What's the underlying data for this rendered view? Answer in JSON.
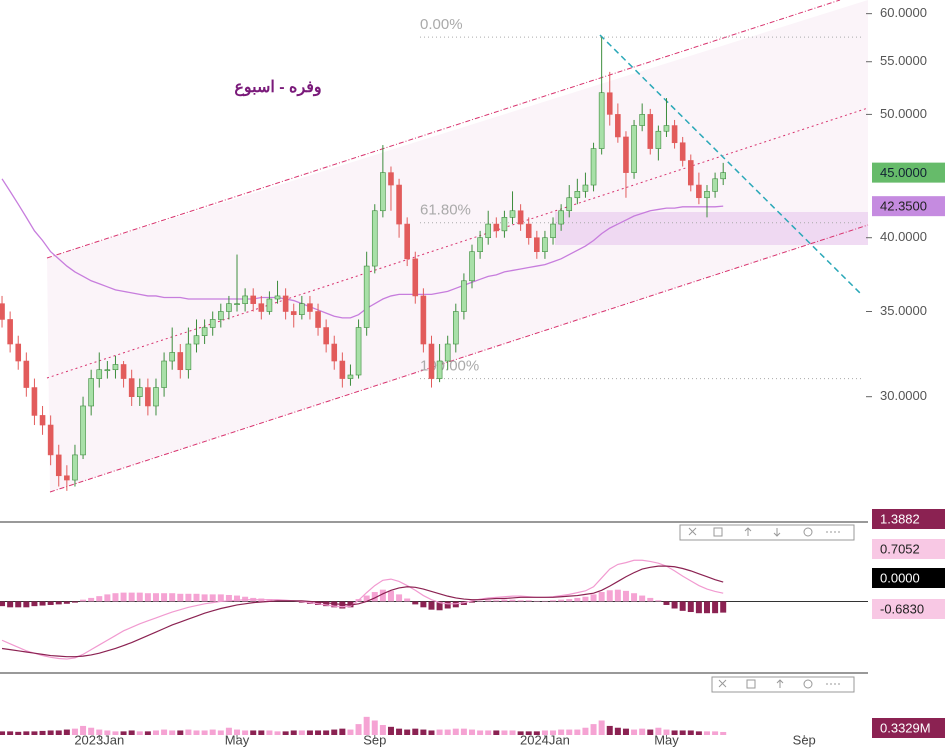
{
  "chart_data": [
    {
      "type": "candlestick",
      "title": "وفره - اسبوع",
      "log_y": true,
      "xlim": [
        -0.25,
        106.5
      ],
      "ylim": [
        24,
        61.5
      ],
      "xticks": [
        {
          "value": 12,
          "label": "2023Jan"
        },
        {
          "value": 29,
          "label": "May"
        },
        {
          "value": 46,
          "label": "Sep"
        },
        {
          "value": 67,
          "label": "2024Jan"
        },
        {
          "value": 82,
          "label": "May"
        },
        {
          "value": 99,
          "label": "Sep"
        }
      ],
      "yticks": [
        {
          "value": 60,
          "label": "60.0000"
        },
        {
          "value": 55,
          "label": "55.0000"
        },
        {
          "value": 50,
          "label": "50.0000"
        },
        {
          "value": 40,
          "label": "40.0000"
        },
        {
          "value": 35,
          "label": "35.0000"
        },
        {
          "value": 30,
          "label": "30.0000"
        }
      ],
      "up_color": "#a8e0a8",
      "up_edge": "#3c8c3c",
      "down_color": "#e25b5b",
      "open": [
        35.5,
        34.5,
        33,
        32,
        30.5,
        29,
        28.5,
        27,
        26,
        25.8,
        27,
        29.5,
        31,
        31.5,
        31.5,
        31.8,
        31,
        30,
        30.5,
        29.5,
        30.5,
        32,
        32.5,
        31.5,
        33,
        33.5,
        34,
        34.5,
        35,
        35.5,
        35.5,
        36,
        35.5,
        35,
        35.8,
        36,
        35,
        34.8,
        35.5,
        35,
        34,
        33,
        32,
        31,
        31.2,
        34,
        38,
        42,
        45,
        44,
        41,
        38.5,
        36,
        33,
        31,
        32,
        33,
        35,
        37,
        39,
        40,
        41,
        40.5,
        41.5,
        42,
        41,
        40,
        39,
        40,
        41,
        42,
        43,
        43.5,
        44,
        47,
        52,
        50,
        48,
        45,
        49,
        50,
        47,
        48.5,
        49,
        47.5,
        46,
        44,
        43,
        43.5,
        44.5
      ],
      "high": [
        36,
        35,
        33.5,
        32.5,
        31,
        29.5,
        29,
        27.5,
        26.5,
        27.5,
        30,
        31.5,
        32.5,
        32,
        32.3,
        32,
        31.5,
        31,
        31,
        31,
        32.5,
        34,
        33,
        34,
        34.5,
        34.5,
        35,
        35.5,
        36,
        38.8,
        36.5,
        36.5,
        36,
        36.3,
        37,
        36.5,
        35.5,
        36,
        36,
        35.5,
        34.5,
        33.5,
        32.5,
        31.8,
        34.5,
        39,
        42.5,
        47.3,
        45.5,
        44.5,
        41.5,
        39,
        36.5,
        33.5,
        33,
        33.5,
        35.5,
        37.5,
        39.5,
        40.5,
        42,
        41.5,
        42,
        43.5,
        42.5,
        41.5,
        40.5,
        40.5,
        41.5,
        42.5,
        44,
        44.5,
        45,
        47.5,
        57.5,
        54,
        51,
        48.5,
        49.5,
        51,
        50.5,
        49,
        51.5,
        49.5,
        48,
        46.5,
        45,
        44,
        45,
        45.8
      ],
      "low": [
        34,
        32.5,
        31.5,
        30,
        28.5,
        28,
        26.5,
        25.5,
        25.3,
        25.5,
        26.8,
        29,
        30.5,
        31,
        31,
        30.5,
        29.5,
        29.5,
        29,
        29,
        30,
        31.5,
        31,
        31,
        32.5,
        33,
        33.5,
        34,
        34.5,
        35,
        35,
        35,
        34.5,
        34.8,
        35.5,
        34.5,
        34,
        34.5,
        34.5,
        33.5,
        32.5,
        31.5,
        30.5,
        30.6,
        31,
        33.5,
        37.5,
        41.5,
        42,
        40,
        38,
        35.5,
        32.5,
        30.5,
        30.8,
        31.5,
        32.5,
        34.5,
        36.5,
        38.5,
        39.5,
        40,
        40,
        41,
        40.5,
        39.5,
        38.5,
        38.5,
        39.5,
        40.5,
        41.5,
        42.5,
        43,
        43.5,
        46.5,
        49,
        47.5,
        43,
        44.5,
        48.5,
        46.5,
        46,
        48,
        47,
        45.5,
        43.5,
        42.5,
        41.5,
        43,
        44
      ],
      "close": [
        34.5,
        33,
        32,
        30.5,
        29,
        28.5,
        27,
        26,
        25.8,
        27,
        29.5,
        31,
        31.5,
        31.5,
        31.8,
        31,
        30,
        30.5,
        29.5,
        30.5,
        32,
        32.5,
        31.5,
        33,
        33.5,
        34,
        34.5,
        35,
        35.5,
        35.5,
        36,
        35.5,
        35,
        35.8,
        36,
        35,
        34.8,
        35.5,
        35,
        34,
        33,
        32,
        31,
        31.2,
        34,
        38,
        42,
        45,
        44,
        41,
        38.5,
        36,
        33,
        31,
        32,
        33,
        35,
        37,
        39,
        40,
        41,
        40.5,
        41.5,
        42,
        41,
        40,
        39,
        40,
        41,
        42,
        43,
        43.5,
        44,
        47,
        52,
        50,
        48,
        45,
        49,
        50,
        47,
        48.5,
        49,
        47.5,
        46,
        44,
        43,
        43.5,
        44.5,
        45
      ],
      "ma": {
        "color": "#c77ddd",
        "values": [
          44.5,
          43.5,
          42.5,
          41.5,
          40.5,
          39.8,
          39,
          38.5,
          38,
          37.6,
          37.3,
          37,
          36.8,
          36.6,
          36.4,
          36.3,
          36.2,
          36.1,
          36,
          36,
          35.9,
          35.9,
          35.9,
          35.8,
          35.8,
          35.8,
          35.8,
          35.8,
          35.8,
          35.8,
          35.8,
          35.8,
          35.9,
          35.9,
          35.9,
          35.8,
          35.7,
          35.5,
          35.3,
          35.1,
          34.9,
          34.7,
          34.6,
          34.6,
          34.8,
          35.2,
          35.5,
          35.8,
          36,
          36.1,
          36.1,
          36.1,
          36.1,
          36.1,
          36.2,
          36.3,
          36.5,
          36.7,
          36.9,
          37.1,
          37.3,
          37.4,
          37.6,
          37.7,
          37.8,
          37.9,
          38,
          38.1,
          38.3,
          38.5,
          38.8,
          39.1,
          39.4,
          39.8,
          40.3,
          40.7,
          41,
          41.3,
          41.6,
          41.8,
          42,
          42.1,
          42.2,
          42.2,
          42.3,
          42.3,
          42.3,
          42.3,
          42.3,
          42.35
        ]
      },
      "last_price": {
        "value": 45,
        "label": "45.0000"
      },
      "ma_label": {
        "value": 42.35,
        "label": "42.3500"
      },
      "fib_levels": [
        {
          "value": 57.5,
          "label": "0.00%"
        },
        {
          "value": 41.1,
          "label": "61.80%"
        },
        {
          "value": 31,
          "label": "100.00%"
        }
      ]
    },
    {
      "type": "macd",
      "ylim": [
        -1.2,
        1.3
      ],
      "series": [
        {
          "color": "#f19ad0",
          "values": [
            -0.66,
            -0.72,
            -0.78,
            -0.84,
            -0.88,
            -0.92,
            -0.95,
            -0.97,
            -0.98,
            -0.96,
            -0.9,
            -0.82,
            -0.74,
            -0.66,
            -0.58,
            -0.5,
            -0.44,
            -0.38,
            -0.33,
            -0.28,
            -0.23,
            -0.18,
            -0.14,
            -0.1,
            -0.07,
            -0.04,
            -0.02,
            0,
            0.01,
            0.02,
            0.03,
            0.03,
            0.03,
            0.03,
            0.03,
            0.02,
            0.01,
            0,
            -0.02,
            -0.04,
            -0.06,
            -0.08,
            -0.09,
            -0.08,
            0.02,
            0.15,
            0.27,
            0.36,
            0.38,
            0.34,
            0.27,
            0.19,
            0.1,
            0.03,
            -0.02,
            -0.04,
            -0.04,
            -0.02,
            0.01,
            0.04,
            0.06,
            0.07,
            0.08,
            0.09,
            0.09,
            0.08,
            0.07,
            0.07,
            0.08,
            0.1,
            0.12,
            0.15,
            0.18,
            0.25,
            0.4,
            0.55,
            0.63,
            0.66,
            0.7,
            0.7,
            0.68,
            0.65,
            0.6,
            0.52,
            0.43,
            0.35,
            0.27,
            0.21,
            0.17,
            0.14
          ]
        },
        {
          "color": "#8b2252",
          "values": [
            -0.8,
            -0.82,
            -0.84,
            -0.86,
            -0.88,
            -0.9,
            -0.92,
            -0.93,
            -0.94,
            -0.94,
            -0.93,
            -0.91,
            -0.88,
            -0.84,
            -0.8,
            -0.75,
            -0.7,
            -0.64,
            -0.58,
            -0.52,
            -0.46,
            -0.4,
            -0.35,
            -0.3,
            -0.25,
            -0.2,
            -0.16,
            -0.12,
            -0.09,
            -0.06,
            -0.04,
            -0.02,
            -0.01,
            0,
            0.01,
            0.01,
            0.01,
            0.01,
            0,
            -0.01,
            -0.02,
            -0.04,
            -0.05,
            -0.06,
            -0.04,
            0,
            0.06,
            0.13,
            0.19,
            0.23,
            0.25,
            0.24,
            0.21,
            0.17,
            0.13,
            0.09,
            0.06,
            0.04,
            0.03,
            0.03,
            0.04,
            0.05,
            0.05,
            0.06,
            0.07,
            0.07,
            0.07,
            0.07,
            0.07,
            0.08,
            0.09,
            0.1,
            0.12,
            0.14,
            0.19,
            0.26,
            0.34,
            0.42,
            0.49,
            0.55,
            0.58,
            0.6,
            0.6,
            0.59,
            0.56,
            0.52,
            0.47,
            0.42,
            0.37,
            0.33
          ]
        }
      ],
      "histogram": {
        "up_color": "#f5a3d3",
        "down_color": "#8b2252",
        "values": [
          -0.08,
          -0.1,
          -0.1,
          -0.1,
          -0.08,
          -0.07,
          -0.06,
          -0.05,
          -0.04,
          -0.02,
          0.03,
          0.06,
          0.09,
          0.12,
          0.14,
          0.15,
          0.15,
          0.15,
          0.14,
          0.14,
          0.14,
          0.14,
          0.13,
          0.13,
          0.13,
          0.12,
          0.12,
          0.12,
          0.11,
          0.1,
          0.08,
          0.06,
          0.05,
          0.04,
          0.03,
          0.02,
          0.01,
          -0.02,
          -0.04,
          -0.06,
          -0.08,
          -0.1,
          -0.12,
          -0.1,
          0.04,
          0.1,
          0.16,
          0.2,
          0.18,
          0.12,
          0.05,
          -0.05,
          -0.1,
          -0.14,
          -0.15,
          -0.12,
          -0.1,
          -0.06,
          -0.02,
          0.01,
          0.02,
          0.02,
          0.03,
          0.03,
          0.02,
          0.02,
          0.01,
          0.01,
          0.02,
          0.03,
          0.04,
          0.06,
          0.08,
          0.12,
          0.16,
          0.19,
          0.2,
          0.18,
          0.14,
          0.1,
          0.06,
          0.02,
          -0.06,
          -0.12,
          -0.16,
          -0.18,
          -0.2,
          -0.2,
          -0.2,
          -0.19
        ]
      },
      "badges": [
        "1.3882",
        "0.7052",
        "0.0000",
        "-0.6830"
      ]
    },
    {
      "type": "bar",
      "ylim": [
        0,
        6.5
      ],
      "up_color": "#f5a3d3",
      "down_color": "#8b2252",
      "values": [
        0.4,
        0.4,
        0.35,
        0.4,
        0.4,
        0.45,
        0.5,
        0.5,
        0.6,
        0.7,
        1.0,
        0.8,
        0.6,
        0.5,
        0.4,
        0.4,
        0.5,
        0.4,
        0.4,
        0.5,
        0.6,
        0.5,
        0.5,
        0.6,
        0.5,
        0.5,
        0.6,
        0.5,
        0.8,
        0.6,
        0.5,
        0.5,
        0.5,
        0.5,
        0.4,
        0.4,
        0.5,
        0.5,
        0.5,
        0.5,
        0.5,
        0.6,
        0.7,
        0.6,
        1.2,
        2.0,
        1.6,
        1.1,
        0.9,
        0.7,
        0.6,
        0.7,
        0.6,
        0.5,
        0.6,
        0.6,
        0.7,
        0.7,
        0.6,
        0.5,
        0.5,
        0.5,
        0.5,
        0.5,
        0.4,
        0.4,
        0.4,
        0.5,
        0.5,
        0.6,
        0.6,
        0.6,
        0.8,
        1.2,
        1.6,
        1.0,
        0.8,
        0.7,
        0.6,
        0.7,
        0.6,
        0.8,
        0.6,
        0.5,
        0.5,
        0.5,
        0.4,
        0.4,
        0.4,
        0.3329
      ],
      "last_label": {
        "value": 0.3329,
        "label": "0.3329M"
      }
    }
  ]
}
